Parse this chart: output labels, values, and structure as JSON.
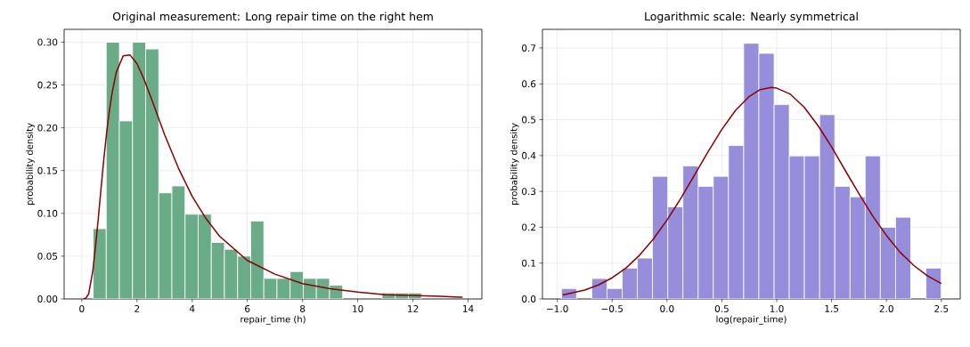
{
  "chart_data": [
    {
      "type": "histogram",
      "title": "Original measurement: Long repair time on the right hem",
      "xlabel": "repair_time (h)",
      "ylabel": "probability density",
      "bins": [
        0.41,
        0.886,
        1.362,
        1.838,
        2.314,
        2.79,
        3.266,
        3.742,
        4.218,
        4.694,
        5.17,
        5.646,
        6.122,
        6.598,
        7.074,
        7.55,
        8.026,
        8.502,
        8.978,
        9.454,
        9.93,
        10.406,
        10.882,
        11.358,
        11.834,
        12.31
      ],
      "series": [
        {
          "color": "#6aab88",
          "values": [
            0.082,
            0.3,
            0.208,
            0.3,
            0.292,
            0.124,
            0.132,
            0.099,
            0.099,
            0.066,
            0.058,
            0.05,
            0.091,
            0.024,
            0.024,
            0.032,
            0.024,
            0.024,
            0.016,
            0,
            0,
            0,
            0.007,
            0.007,
            0.007
          ]
        },
        {
          "type": "line",
          "color": "#8b0000",
          "x": [
            0.05,
            0.15,
            0.25,
            0.4,
            0.5,
            0.6,
            0.7,
            0.8,
            0.9,
            1.0,
            1.1,
            1.25,
            1.5,
            1.75,
            2.0,
            2.25,
            2.5,
            3,
            3.5,
            4,
            4.5,
            5,
            6,
            7,
            8,
            9,
            10,
            11,
            12,
            13,
            13.8
          ],
          "values": [
            0.0,
            0.001,
            0.006,
            0.033,
            0.062,
            0.095,
            0.13,
            0.164,
            0.194,
            0.22,
            0.241,
            0.265,
            0.284,
            0.285,
            0.275,
            0.257,
            0.236,
            0.192,
            0.153,
            0.12,
            0.094,
            0.073,
            0.045,
            0.029,
            0.018,
            0.012,
            0.008,
            0.005,
            0.004,
            0.003,
            0.002
          ]
        }
      ],
      "xlim": [
        -0.64,
        14.5
      ],
      "ylim": [
        0,
        0.315
      ],
      "xticks": [
        0,
        2,
        4,
        6,
        8,
        10,
        12,
        14
      ],
      "yticks": [
        {
          "value": 0,
          "label": "0.00"
        },
        {
          "value": 0.05,
          "label": "0.05"
        },
        {
          "value": 0.1,
          "label": "0.10"
        },
        {
          "value": 0.15,
          "label": "0.15"
        },
        {
          "value": 0.2,
          "label": "0.20"
        },
        {
          "value": 0.25,
          "label": "0.25"
        },
        {
          "value": 0.3,
          "label": "0.30"
        }
      ],
      "grid": true
    },
    {
      "type": "histogram",
      "title": "Logarithmic scale: Nearly symmetrical",
      "xlabel": "log(repair_time)",
      "ylabel": "probability density",
      "bins": [
        -0.962,
        -0.824,
        -0.685,
        -0.547,
        -0.408,
        -0.27,
        -0.132,
        0.007,
        0.145,
        0.284,
        0.422,
        0.56,
        0.699,
        0.837,
        0.976,
        1.114,
        1.252,
        1.391,
        1.529,
        1.668,
        1.806,
        1.944,
        2.083,
        2.221,
        2.36,
        2.498
      ],
      "series": [
        {
          "color": "#968ddb",
          "values": [
            0.029,
            0,
            0.057,
            0.029,
            0.086,
            0.114,
            0.342,
            0.257,
            0.371,
            0.314,
            0.342,
            0.428,
            0.713,
            0.685,
            0.542,
            0.399,
            0.399,
            0.514,
            0.314,
            0.285,
            0.399,
            0.2,
            0.228,
            0,
            0.086
          ]
        },
        {
          "type": "line",
          "color": "#8b0000",
          "x": [
            -0.95,
            -0.75,
            -0.625,
            -0.5,
            -0.375,
            -0.25,
            -0.125,
            0,
            0.125,
            0.25,
            0.375,
            0.5,
            0.625,
            0.75,
            0.85,
            0.95,
            1.0,
            1.125,
            1.25,
            1.375,
            1.5,
            1.625,
            1.75,
            1.875,
            2.0,
            2.125,
            2.25,
            2.375,
            2.5
          ],
          "values": [
            0.011,
            0.025,
            0.039,
            0.059,
            0.086,
            0.122,
            0.167,
            0.22,
            0.28,
            0.345,
            0.411,
            0.473,
            0.526,
            0.565,
            0.584,
            0.59,
            0.588,
            0.571,
            0.535,
            0.484,
            0.424,
            0.358,
            0.293,
            0.231,
            0.177,
            0.13,
            0.093,
            0.064,
            0.043
          ]
        }
      ],
      "xlim": [
        -1.135,
        2.672
      ],
      "ylim": [
        0,
        0.752
      ],
      "xticks": [
        {
          "value": -1,
          "label": "−1.0"
        },
        {
          "value": -0.5,
          "label": "−0.5"
        },
        {
          "value": 0,
          "label": "0.0"
        },
        {
          "value": 0.5,
          "label": "0.5"
        },
        {
          "value": 1,
          "label": "1.0"
        },
        {
          "value": 1.5,
          "label": "1.5"
        },
        {
          "value": 2,
          "label": "2.0"
        },
        {
          "value": 2.5,
          "label": "2.5"
        }
      ],
      "yticks": [
        {
          "value": 0,
          "label": "0.0"
        },
        {
          "value": 0.1,
          "label": "0.1"
        },
        {
          "value": 0.2,
          "label": "0.2"
        },
        {
          "value": 0.3,
          "label": "0.3"
        },
        {
          "value": 0.4,
          "label": "0.4"
        },
        {
          "value": 0.5,
          "label": "0.5"
        },
        {
          "value": 0.6,
          "label": "0.6"
        },
        {
          "value": 0.7,
          "label": "0.7"
        }
      ],
      "grid": true
    }
  ]
}
